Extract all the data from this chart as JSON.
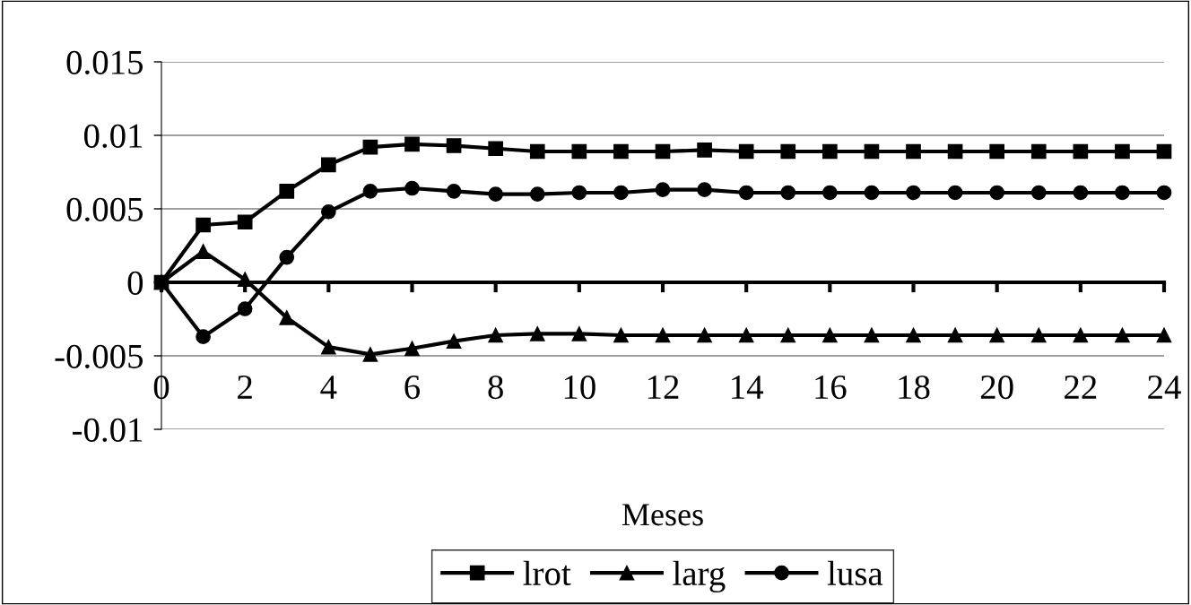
{
  "chart_data": {
    "type": "line",
    "xlabel": "Meses",
    "x": [
      0,
      1,
      2,
      3,
      4,
      5,
      6,
      7,
      8,
      9,
      10,
      11,
      12,
      13,
      14,
      15,
      16,
      17,
      18,
      19,
      20,
      21,
      22,
      23,
      24
    ],
    "series": [
      {
        "name": "lrot",
        "color": "#000000",
        "marker": "square",
        "values": [
          0,
          0.0039,
          0.0041,
          0.0062,
          0.008,
          0.0092,
          0.0094,
          0.0093,
          0.0091,
          0.0089,
          0.0089,
          0.0089,
          0.0089,
          0.009,
          0.0089,
          0.0089,
          0.0089,
          0.0089,
          0.0089,
          0.0089,
          0.0089,
          0.0089,
          0.0089,
          0.0089,
          0.0089
        ]
      },
      {
        "name": "larg",
        "color": "#000000",
        "marker": "triangle",
        "values": [
          0,
          0.0021,
          0.0002,
          -0.0024,
          -0.0044,
          -0.0049,
          -0.0045,
          -0.004,
          -0.0036,
          -0.0035,
          -0.0035,
          -0.0036,
          -0.0036,
          -0.0036,
          -0.0036,
          -0.0036,
          -0.0036,
          -0.0036,
          -0.0036,
          -0.0036,
          -0.0036,
          -0.0036,
          -0.0036,
          -0.0036,
          -0.0036
        ]
      },
      {
        "name": "lusa",
        "color": "#000000",
        "marker": "circle",
        "values": [
          0,
          -0.0037,
          -0.0018,
          0.0017,
          0.0048,
          0.0062,
          0.0064,
          0.0062,
          0.006,
          0.006,
          0.0061,
          0.0061,
          0.0063,
          0.0063,
          0.0061,
          0.0061,
          0.0061,
          0.0061,
          0.0061,
          0.0061,
          0.0061,
          0.0061,
          0.0061,
          0.0061,
          0.0061
        ]
      }
    ],
    "xlim": [
      0,
      24
    ],
    "xticks": [
      0,
      2,
      4,
      6,
      8,
      10,
      12,
      14,
      16,
      18,
      20,
      22,
      24
    ],
    "ylim": [
      -0.01,
      0.015
    ],
    "yticks": [
      -0.01,
      -0.005,
      0,
      0.005,
      0.01,
      0.015
    ],
    "grid": "y",
    "legend": "bottom",
    "line_style": "solid"
  }
}
